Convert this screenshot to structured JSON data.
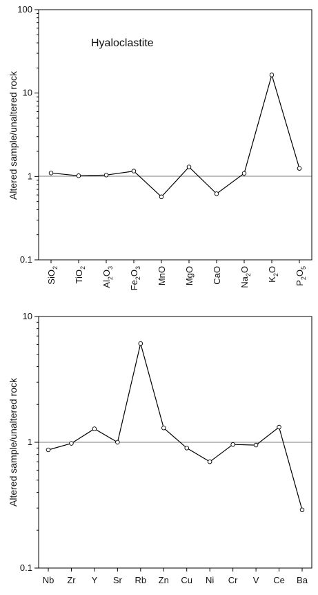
{
  "chart_data": [
    {
      "type": "line",
      "title": "Hyaloclastite",
      "ylabel": "Altered sample/unaltered rock",
      "yscale": "log",
      "ylim": [
        0.1,
        100
      ],
      "yticks": [
        "0.1",
        "1",
        "10",
        "100"
      ],
      "reference_line": 1,
      "categories": [
        {
          "base": "SiO",
          "parts": [
            [
              "2",
              "sub"
            ]
          ]
        },
        {
          "base": "TiO",
          "parts": [
            [
              "2",
              "sub"
            ]
          ]
        },
        {
          "base": "Al",
          "parts": [
            [
              "2",
              "sub"
            ],
            [
              "O",
              ""
            ],
            [
              "3",
              "sub"
            ]
          ]
        },
        {
          "base": "Fe",
          "parts": [
            [
              "2",
              "sub"
            ],
            [
              "O",
              ""
            ],
            [
              "3",
              "sub"
            ]
          ]
        },
        {
          "base": "MnO",
          "parts": []
        },
        {
          "base": "MgO",
          "parts": []
        },
        {
          "base": "CaO",
          "parts": []
        },
        {
          "base": "Na",
          "parts": [
            [
              "2",
              "sub"
            ],
            [
              "O",
              ""
            ]
          ]
        },
        {
          "base": "K",
          "parts": [
            [
              "2",
              "sub"
            ],
            [
              "O",
              ""
            ]
          ]
        },
        {
          "base": "P",
          "parts": [
            [
              "2",
              "sub"
            ],
            [
              "O",
              ""
            ],
            [
              "5",
              "sub"
            ]
          ]
        }
      ],
      "values": [
        1.1,
        1.02,
        1.04,
        1.16,
        0.57,
        1.3,
        0.62,
        1.09,
        16.5,
        1.25
      ]
    },
    {
      "type": "line",
      "title": "",
      "ylabel": "Altered sample/unaltered rock",
      "yscale": "log",
      "ylim": [
        0.1,
        10
      ],
      "yticks": [
        "0.1",
        "1",
        "10"
      ],
      "reference_line": 1,
      "categories": [
        "Nb",
        "Zr",
        "Y",
        "Sr",
        "Rb",
        "Zn",
        "Cu",
        "Ni",
        "Cr",
        "V",
        "Ce",
        "Ba"
      ],
      "values": [
        0.87,
        0.98,
        1.28,
        1.0,
        6.1,
        1.3,
        0.9,
        0.7,
        0.96,
        0.95,
        1.32,
        0.29
      ]
    }
  ]
}
